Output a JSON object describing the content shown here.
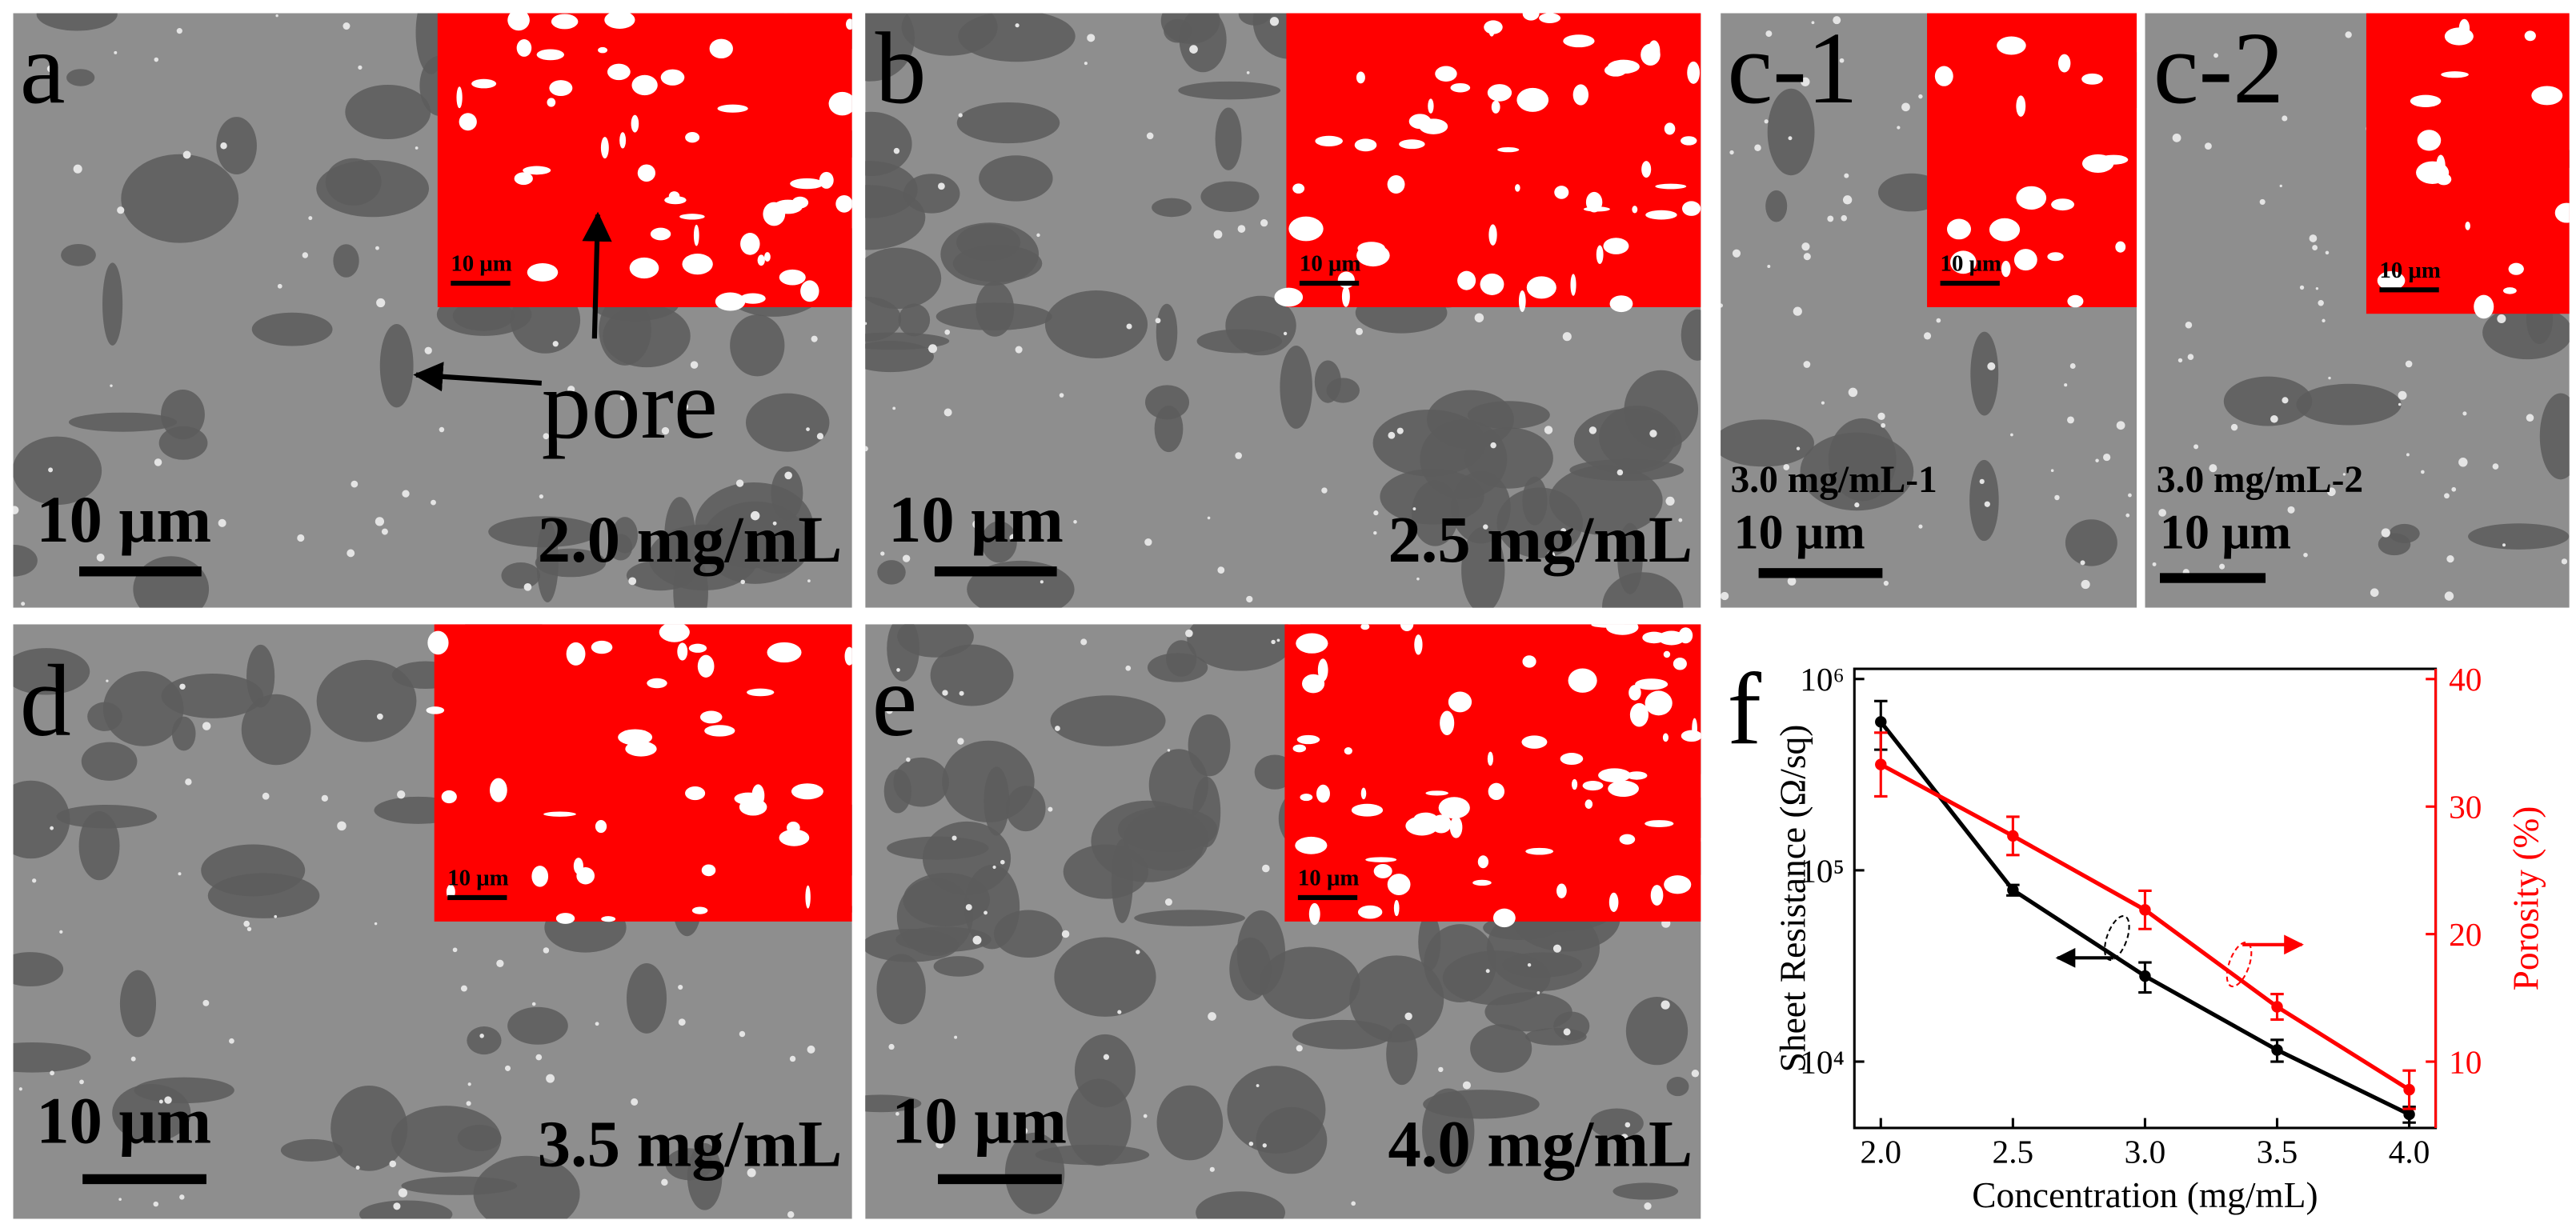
{
  "panels": [
    {
      "label": "a",
      "scale_bar": "10 μm",
      "inset_scale_bar": "10 μm",
      "concentration": "2.0 mg/mL"
    },
    {
      "label": "b",
      "scale_bar": "10 μm",
      "inset_scale_bar": "10 μm",
      "concentration": "2.5 mg/mL"
    },
    {
      "label": "c-1",
      "scale_bar": "10 μm",
      "inset_scale_bar": "10 μm",
      "concentration": "3.0 mg/mL-1"
    },
    {
      "label": "c-2",
      "scale_bar": "10 μm",
      "inset_scale_bar": "10 μm",
      "concentration": "3.0 mg/mL-2"
    },
    {
      "label": "d",
      "scale_bar": "10 μm",
      "inset_scale_bar": "10 μm",
      "concentration": "3.5 mg/mL"
    },
    {
      "label": "e",
      "scale_bar": "10 μm",
      "inset_scale_bar": "10 μm",
      "concentration": "4.0 mg/mL"
    }
  ],
  "annotation": "pore",
  "chart_data": {
    "type": "line",
    "panel_label": "f",
    "x_label": "Concentration (mg/mL)",
    "y_label": "Sheet Resistance (Ω/sq)",
    "y2_label": "Porosity (%)",
    "x": [
      2.0,
      2.5,
      3.0,
      3.5,
      4.0
    ],
    "xlim": [
      1.9,
      4.1
    ],
    "xticks": [
      {
        "value": 2,
        "label": "2.0"
      },
      {
        "value": 2.5,
        "label": "2.5"
      },
      {
        "value": 3,
        "label": "3.0"
      },
      {
        "value": 3.5,
        "label": "3.5"
      },
      {
        "value": 4,
        "label": "4.0"
      }
    ],
    "ylog": true,
    "ylim": [
      4500,
      1130000
    ],
    "yticks": [
      {
        "value": 10000,
        "label": "10⁴"
      },
      {
        "value": 100000,
        "label": "10⁵"
      },
      {
        "value": 1000000,
        "label": "10⁶"
      }
    ],
    "y2lim": [
      4.8,
      40.8
    ],
    "y2ticks": [
      10,
      20,
      30,
      40
    ],
    "series": [
      {
        "name": "Sheet Resistance",
        "color": "#000000",
        "values": [
          597000,
          78900,
          28000,
          11500,
          5300
        ],
        "errors": [
          170000,
          5000,
          5000,
          1500,
          500
        ]
      },
      {
        "name": "Porosity",
        "color": "#ff0000",
        "axis": "y2",
        "values": [
          33.3,
          27.7,
          21.9,
          14.3,
          7.8
        ],
        "errors": [
          2.5,
          1.5,
          1.5,
          1,
          1.5
        ]
      }
    ]
  }
}
